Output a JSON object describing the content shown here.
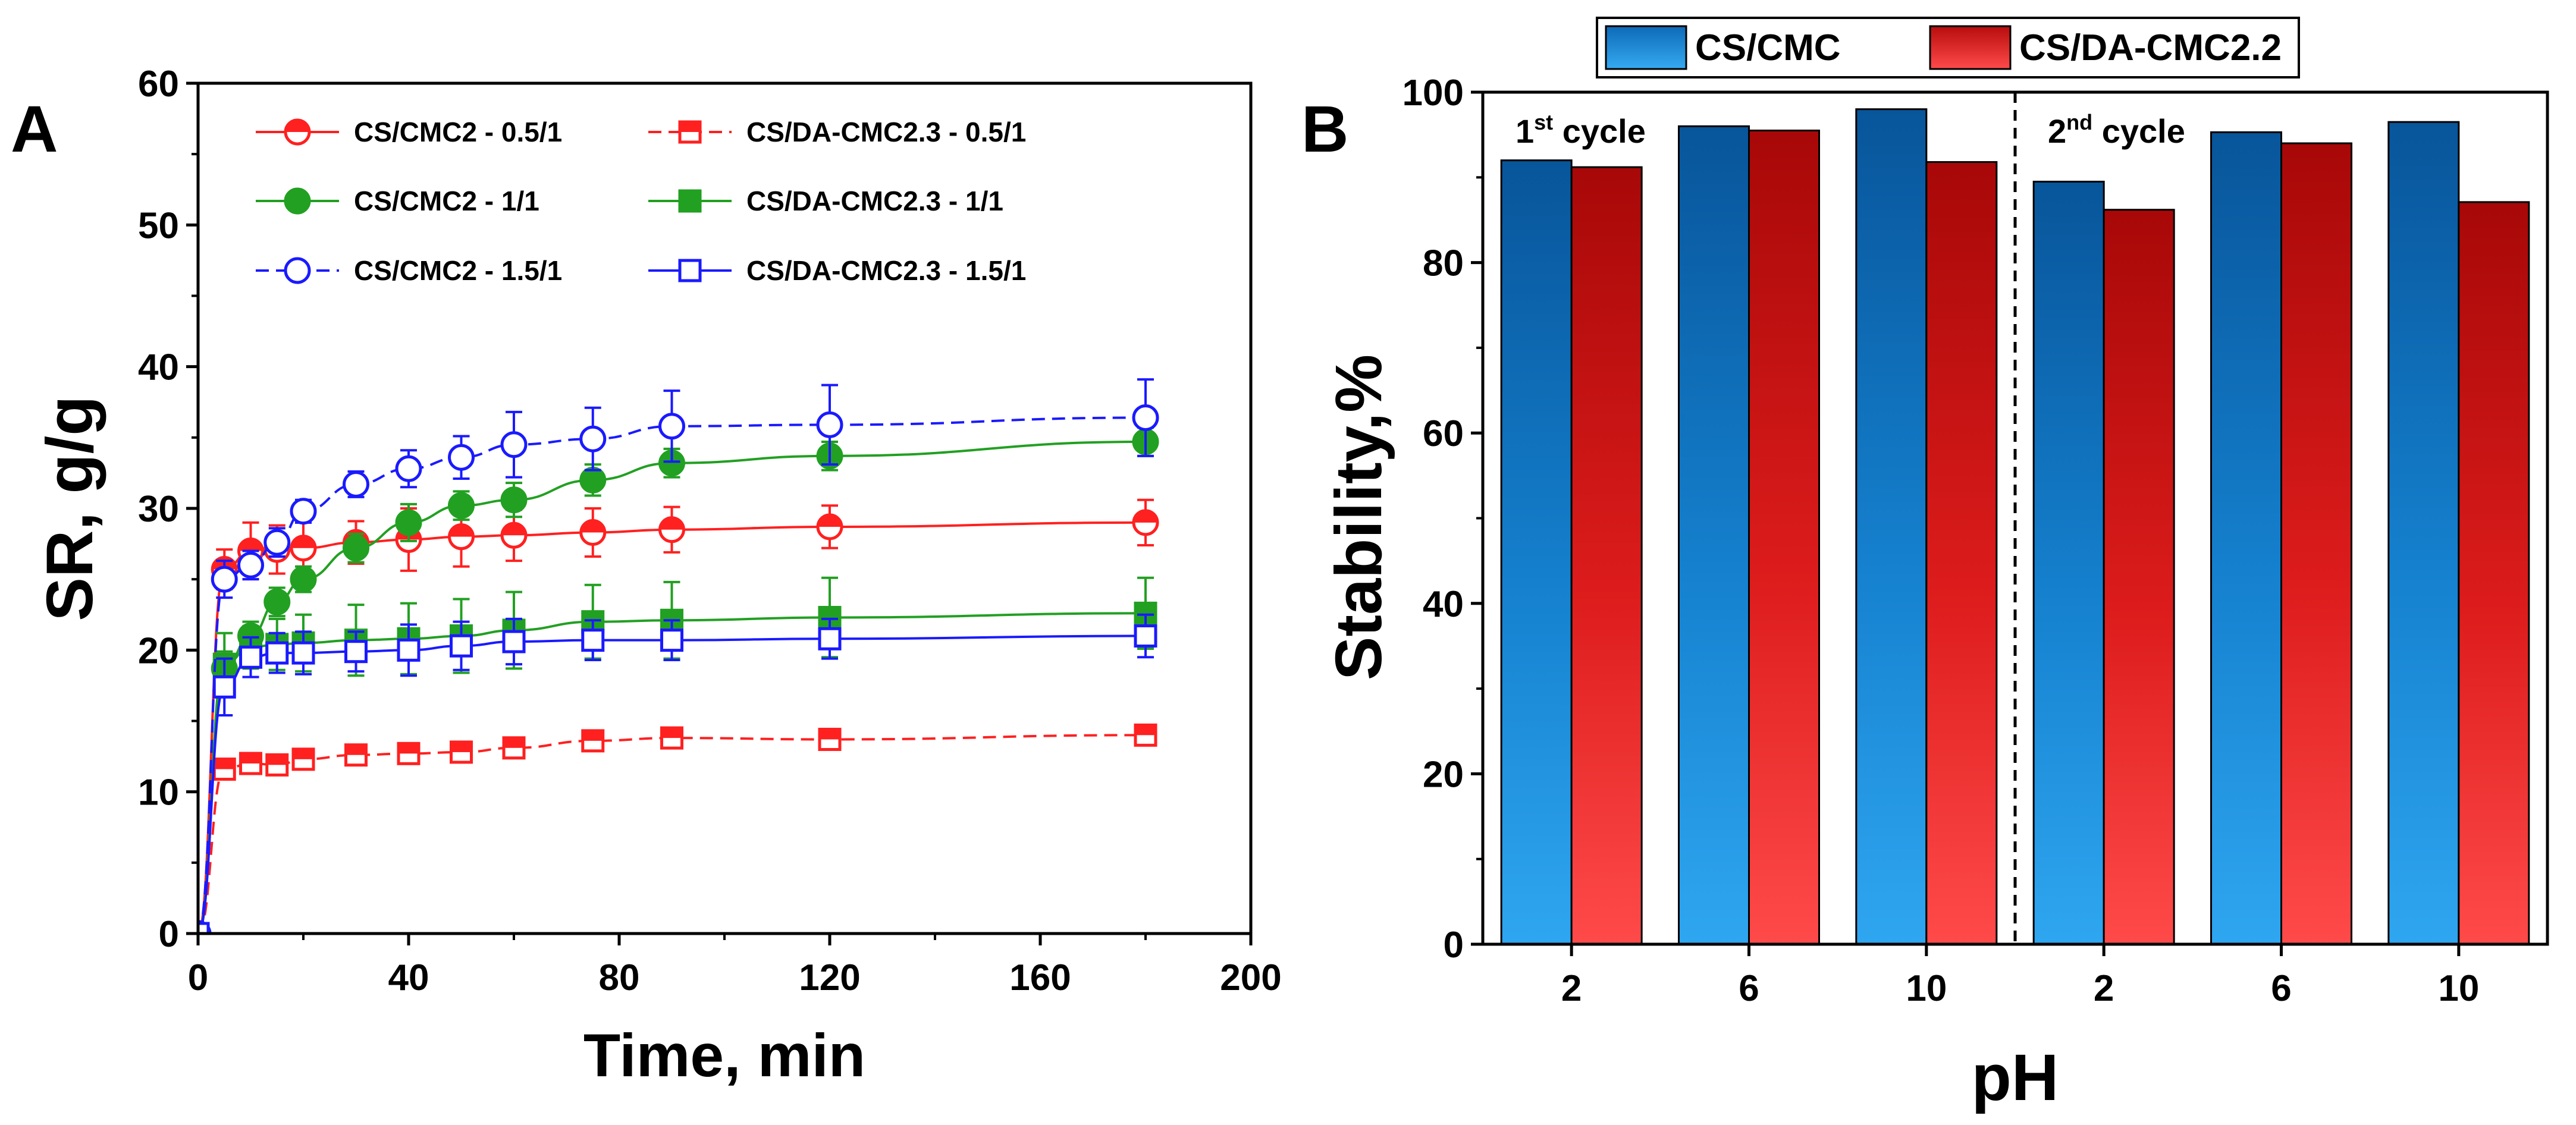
{
  "chart_data": [
    {
      "type": "line",
      "panel_label": "A",
      "xlabel": "Time, min",
      "ylabel": "SR, g/g",
      "xlim": [
        0,
        200
      ],
      "ylim": [
        0,
        60
      ],
      "xticks": [
        0,
        40,
        80,
        120,
        160,
        200
      ],
      "yticks": [
        0,
        10,
        20,
        30,
        40,
        50,
        60
      ],
      "x": [
        0,
        5,
        10,
        15,
        20,
        30,
        40,
        50,
        60,
        75,
        90,
        120,
        180
      ],
      "legend_position": "top-left",
      "series": [
        {
          "name": "CS/CMC2 - 0.5/1",
          "color": "#ff2020",
          "marker": "circle",
          "fill": "half",
          "dash": false,
          "values": [
            0,
            25.7,
            27.0,
            27.1,
            27.2,
            27.6,
            27.8,
            28.0,
            28.1,
            28.3,
            28.5,
            28.7,
            29.0
          ],
          "errors": [
            0,
            1.4,
            2.0,
            1.7,
            1.8,
            1.5,
            2.2,
            2.1,
            1.8,
            1.7,
            1.6,
            1.5,
            1.6
          ]
        },
        {
          "name": "CS/DA-CMC2.3 - 0.5/1",
          "color": "#ff2020",
          "marker": "square",
          "fill": "half",
          "dash": true,
          "values": [
            0,
            11.6,
            12.0,
            11.9,
            12.3,
            12.6,
            12.7,
            12.8,
            13.1,
            13.6,
            13.8,
            13.7,
            14.0
          ],
          "errors": [
            0,
            0.5,
            0.6,
            0.6,
            0.6,
            0.7,
            0.7,
            0.6,
            0.6,
            0.6,
            0.7,
            0.6,
            0.7
          ]
        },
        {
          "name": "CS/CMC2 - 1/1",
          "color": "#22a022",
          "marker": "circle",
          "fill": "full",
          "dash": false,
          "values": [
            0,
            18.7,
            21.0,
            23.4,
            25.0,
            27.2,
            29.0,
            30.2,
            30.6,
            32.0,
            33.2,
            33.7,
            34.7
          ],
          "errors": [
            0,
            1.2,
            1.0,
            1.0,
            0.9,
            1.0,
            1.3,
            1.0,
            1.2,
            1.1,
            1.0,
            1.0,
            1.0
          ]
        },
        {
          "name": "CS/DA-CMC2.3 - 1/1",
          "color": "#22a022",
          "marker": "square",
          "fill": "full",
          "dash": false,
          "values": [
            0,
            19.0,
            20.2,
            20.4,
            20.5,
            20.7,
            20.8,
            21.0,
            21.4,
            22.0,
            22.1,
            22.3,
            22.6
          ],
          "errors": [
            0,
            2.2,
            1.5,
            1.8,
            2.0,
            2.5,
            2.5,
            2.6,
            2.7,
            2.6,
            2.7,
            2.8,
            2.5
          ]
        },
        {
          "name": "CS/CMC2 - 1.5/1",
          "color": "#1a1aff",
          "marker": "circle",
          "fill": "open",
          "dash": true,
          "values": [
            0,
            25.0,
            26.0,
            27.6,
            29.8,
            31.7,
            32.8,
            33.6,
            34.5,
            34.9,
            35.8,
            35.9,
            36.4
          ],
          "errors": [
            0,
            1.3,
            1.0,
            1.0,
            0.8,
            0.9,
            1.3,
            1.5,
            2.3,
            2.2,
            2.5,
            2.8,
            2.7
          ]
        },
        {
          "name": "CS/DA-CMC2.3 - 1.5/1",
          "color": "#1a1aff",
          "marker": "square",
          "fill": "open",
          "dash": false,
          "values": [
            0,
            17.4,
            19.5,
            19.8,
            19.8,
            19.9,
            20.0,
            20.3,
            20.6,
            20.7,
            20.7,
            20.8,
            21.0
          ],
          "errors": [
            0,
            2.0,
            1.4,
            1.4,
            1.5,
            1.4,
            1.8,
            1.7,
            1.6,
            1.4,
            1.4,
            1.4,
            1.5
          ]
        }
      ]
    },
    {
      "type": "bar",
      "panel_label": "B",
      "xlabel": "pH",
      "ylabel": "Stability,%",
      "ylim": [
        0,
        100
      ],
      "yticks": [
        0,
        20,
        40,
        60,
        80,
        100
      ],
      "categories": [
        "2",
        "6",
        "10",
        "2",
        "6",
        "10"
      ],
      "legend_position": "top",
      "series": [
        {
          "name": "CS/CMC",
          "color": "#1f8fe0",
          "values": [
            92.0,
            96.0,
            98.0,
            89.5,
            95.3,
            96.5
          ]
        },
        {
          "name": "CS/DA-CMC2.2",
          "color": "#e82020",
          "values": [
            91.2,
            95.5,
            91.8,
            86.2,
            94.0,
            87.1
          ]
        }
      ],
      "annotations": [
        {
          "base": "1",
          "sup": "st",
          "rest": " cycle"
        },
        {
          "base": "2",
          "sup": "nd",
          "rest": " cycle"
        }
      ]
    }
  ]
}
